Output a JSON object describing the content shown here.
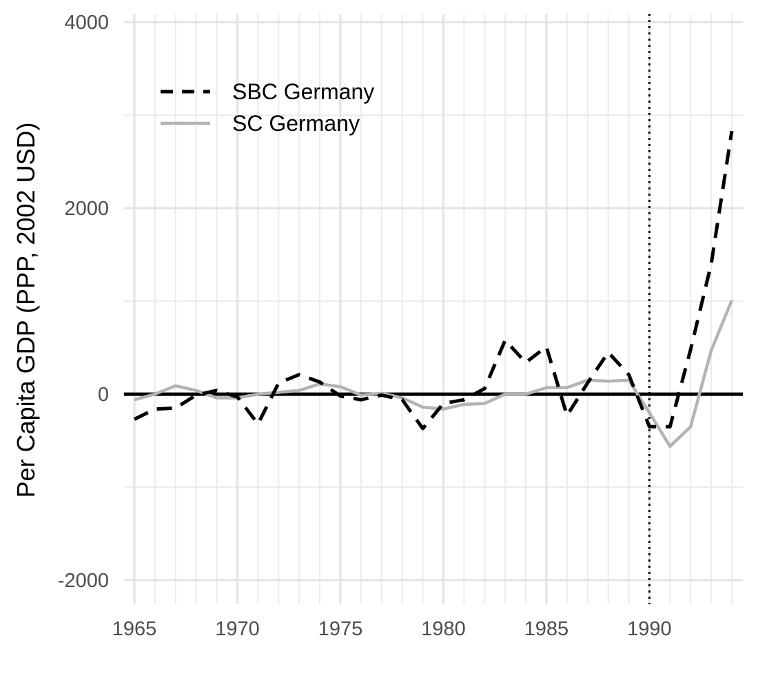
{
  "chart_data": {
    "type": "line",
    "title": "",
    "xlabel": "",
    "ylabel": "Per Capita GDP (PPP, 2002 USD)",
    "xlim": [
      1965,
      1994
    ],
    "ylim": [
      -2200,
      4150
    ],
    "x_ticks": [
      1965,
      1970,
      1975,
      1980,
      1985,
      1990
    ],
    "y_ticks": [
      -2000,
      0,
      2000,
      4000
    ],
    "y_tick_labels": [
      "-2000",
      "0",
      "2000",
      "4000"
    ],
    "grid": true,
    "legend_position": "top-left",
    "reference_lines": {
      "horizontal_zero": 0,
      "vertical_dotted_x": 1990
    },
    "x": [
      1965,
      1966,
      1967,
      1968,
      1969,
      1970,
      1971,
      1972,
      1973,
      1974,
      1975,
      1976,
      1977,
      1978,
      1979,
      1980,
      1981,
      1982,
      1983,
      1984,
      1985,
      1986,
      1987,
      1988,
      1989,
      1990,
      1991,
      1992,
      1993,
      1994
    ],
    "series": [
      {
        "name": "SBC Germany",
        "style": "dashed",
        "color": "#000000",
        "values": [
          -270,
          -160,
          -150,
          -10,
          40,
          -30,
          -320,
          120,
          210,
          130,
          -20,
          -60,
          -10,
          -60,
          -370,
          -100,
          -60,
          60,
          580,
          340,
          510,
          -230,
          120,
          450,
          210,
          -350,
          -350,
          480,
          1400,
          2830
        ]
      },
      {
        "name": "SC Germany",
        "style": "solid",
        "color": "#b3b3b3",
        "values": [
          -60,
          0,
          90,
          40,
          -40,
          -40,
          0,
          20,
          40,
          110,
          80,
          -10,
          10,
          -40,
          -140,
          -160,
          -110,
          -100,
          0,
          0,
          70,
          70,
          150,
          140,
          150,
          -200,
          -560,
          -350,
          470,
          1010
        ]
      }
    ]
  }
}
